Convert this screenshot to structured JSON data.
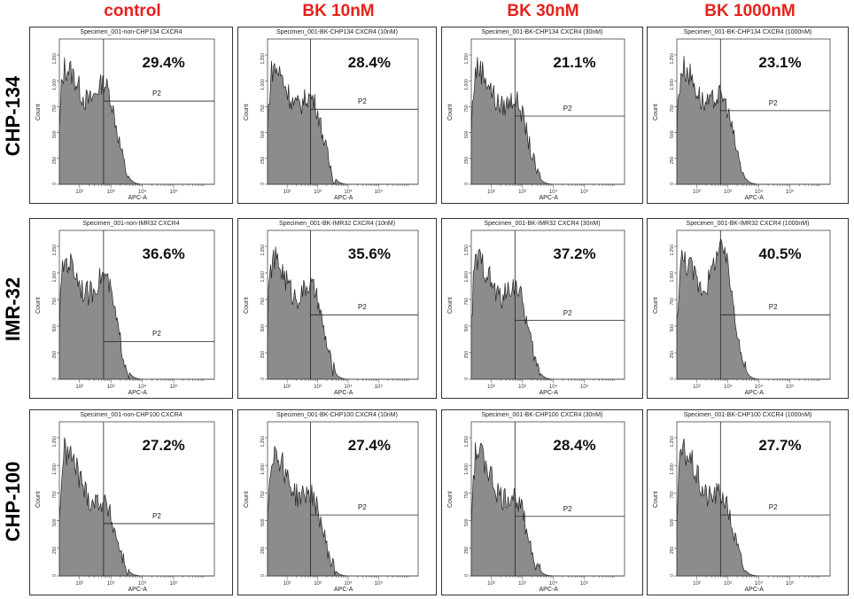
{
  "columns": [
    "control",
    "BK 10nM",
    "BK 30nM",
    "BK 1000nM"
  ],
  "rows": [
    "CHP-134",
    "IMR-32",
    "CHP-100"
  ],
  "colors": {
    "header": "#e8211c",
    "fill": "#8c8c8c",
    "stroke": "#222222"
  },
  "chart_data": [
    {
      "type": "histogram",
      "row": "CHP-134",
      "condition": "control",
      "title": "Specimen_001-non-CHP134 CXCR4",
      "gate": "P2",
      "percent": "29.4%",
      "xlabel": "APC-A",
      "ylabel": "Count",
      "gate_level": 0.61,
      "peak2": 0.62,
      "yticks": [
        "0",
        "250",
        "500",
        "750",
        "1,000",
        "1,250"
      ],
      "xticks": [
        "10²",
        "10³",
        "10⁴",
        "10⁵"
      ]
    },
    {
      "type": "histogram",
      "row": "CHP-134",
      "condition": "BK 10nM",
      "title": "Specimen_001-BK-CHP134 CXCR4 (10nM)",
      "gate": "P2",
      "percent": "28.4%",
      "xlabel": "APC-A",
      "ylabel": "Count",
      "gate_level": 0.55,
      "peak2": 0.52,
      "yticks": [
        "0",
        "250",
        "500",
        "750",
        "1,000",
        "1,250"
      ],
      "xticks": [
        "10²",
        "10³",
        "10⁴",
        "10⁵"
      ]
    },
    {
      "type": "histogram",
      "row": "CHP-134",
      "condition": "BK 30nM",
      "title": "Specimen_001-BK-CHP134 CXCR4 (30nM)",
      "gate": "P2",
      "percent": "21.1%",
      "xlabel": "APC-A",
      "ylabel": "Count",
      "gate_level": 0.5,
      "peak2": 0.5,
      "yticks": [
        "0",
        "250",
        "500",
        "750",
        "1,000",
        "1,250"
      ],
      "xticks": [
        "10²",
        "10³",
        "10⁴",
        "10⁵"
      ]
    },
    {
      "type": "histogram",
      "row": "CHP-134",
      "condition": "BK 1000nM",
      "title": "Specimen_001-BK-CHP134 CXCR4 (1000nM)",
      "gate": "P2",
      "percent": "23.1%",
      "xlabel": "APC-A",
      "ylabel": "Count",
      "gate_level": 0.54,
      "peak2": 0.53,
      "yticks": [
        "0",
        "250",
        "500",
        "750",
        "1,000",
        "1,250"
      ],
      "xticks": [
        "10²",
        "10³",
        "10⁴",
        "10⁵"
      ]
    },
    {
      "type": "histogram",
      "row": "IMR-32",
      "condition": "control",
      "title": "Specimen_001-non-IMR32 CXCR4",
      "gate": "P2",
      "percent": "36.6%",
      "xlabel": "APC-A",
      "ylabel": "Count",
      "gate_level": 0.27,
      "peak2": 0.62,
      "yticks": [
        "0",
        "250",
        "500",
        "750",
        "1,000",
        "1,250"
      ],
      "xticks": [
        "10²",
        "10³",
        "10⁴",
        "10⁵"
      ]
    },
    {
      "type": "histogram",
      "row": "IMR-32",
      "condition": "BK 10nM",
      "title": "Specimen_001-BK-IMR32 CXCR4 (10nM)",
      "gate": "P2",
      "percent": "35.6%",
      "xlabel": "APC-A",
      "ylabel": "Count",
      "gate_level": 0.46,
      "peak2": 0.55,
      "yticks": [
        "0",
        "250",
        "500",
        "750",
        "1,000",
        "1,250"
      ],
      "xticks": [
        "10²",
        "10³",
        "10⁴",
        "10⁵"
      ]
    },
    {
      "type": "histogram",
      "row": "IMR-32",
      "condition": "BK 30nM",
      "title": "Specimen_001-BK-IMR32 CXCR4 (30nM)",
      "gate": "P2",
      "percent": "37.2%",
      "xlabel": "APC-A",
      "ylabel": "Count",
      "gate_level": 0.42,
      "peak2": 0.55,
      "yticks": [
        "0",
        "250",
        "500",
        "750",
        "1,000",
        "1,250"
      ],
      "xticks": [
        "10²",
        "10³",
        "10⁴",
        "10⁵"
      ]
    },
    {
      "type": "histogram",
      "row": "IMR-32",
      "condition": "BK 1000nM",
      "title": "Specimen_001-BK-IMR32 CXCR4 (1000nM)",
      "gate": "P2",
      "percent": "40.5%",
      "xlabel": "APC-A",
      "ylabel": "Count",
      "gate_level": 0.46,
      "peak2": 0.82,
      "yticks": [
        "0",
        "250",
        "500",
        "750",
        "1,000",
        "1,250"
      ],
      "xticks": [
        "10²",
        "10³",
        "10⁴",
        "10⁵"
      ]
    },
    {
      "type": "histogram",
      "row": "CHP-100",
      "condition": "control",
      "title": "Specimen_001-non-CHP100 CXCR4",
      "gate": "P2",
      "percent": "27.2%",
      "xlabel": "APC-A",
      "ylabel": "Count",
      "gate_level": 0.36,
      "peak2": 0.38,
      "yticks": [
        "0",
        "250",
        "500",
        "750",
        "1,000",
        "1,250"
      ],
      "xticks": [
        "10²",
        "10³",
        "10⁴",
        "10⁵"
      ]
    },
    {
      "type": "histogram",
      "row": "CHP-100",
      "condition": "BK 10nM",
      "title": "Specimen_001-BK-CHP100 CXCR4 (10nM)",
      "gate": "P2",
      "percent": "27.4%",
      "xlabel": "APC-A",
      "ylabel": "Count",
      "gate_level": 0.42,
      "peak2": 0.44,
      "yticks": [
        "0",
        "250",
        "500",
        "750",
        "1,000",
        "1,250"
      ],
      "xticks": [
        "10²",
        "10³",
        "10⁴",
        "10⁵"
      ]
    },
    {
      "type": "histogram",
      "row": "CHP-100",
      "condition": "BK 30nM",
      "title": "Specimen_001-BK-CHP100 CXCR4 (30nM)",
      "gate": "P2",
      "percent": "28.4%",
      "xlabel": "APC-A",
      "ylabel": "Count",
      "gate_level": 0.41,
      "peak2": 0.42,
      "yticks": [
        "0",
        "250",
        "500",
        "750",
        "1,000",
        "1,250"
      ],
      "xticks": [
        "10²",
        "10³",
        "10⁴",
        "10⁵"
      ]
    },
    {
      "type": "histogram",
      "row": "CHP-100",
      "condition": "BK 1000nM",
      "title": "Specimen_001-BK-CHP100 CXCR4 (1000nM)",
      "gate": "P2",
      "percent": "27.7%",
      "xlabel": "APC-A",
      "ylabel": "Count",
      "gate_level": 0.42,
      "peak2": 0.44,
      "yticks": [
        "0",
        "250",
        "500",
        "750",
        "1,000",
        "1,250"
      ],
      "xticks": [
        "10²",
        "10³",
        "10⁴",
        "10⁵"
      ]
    }
  ]
}
